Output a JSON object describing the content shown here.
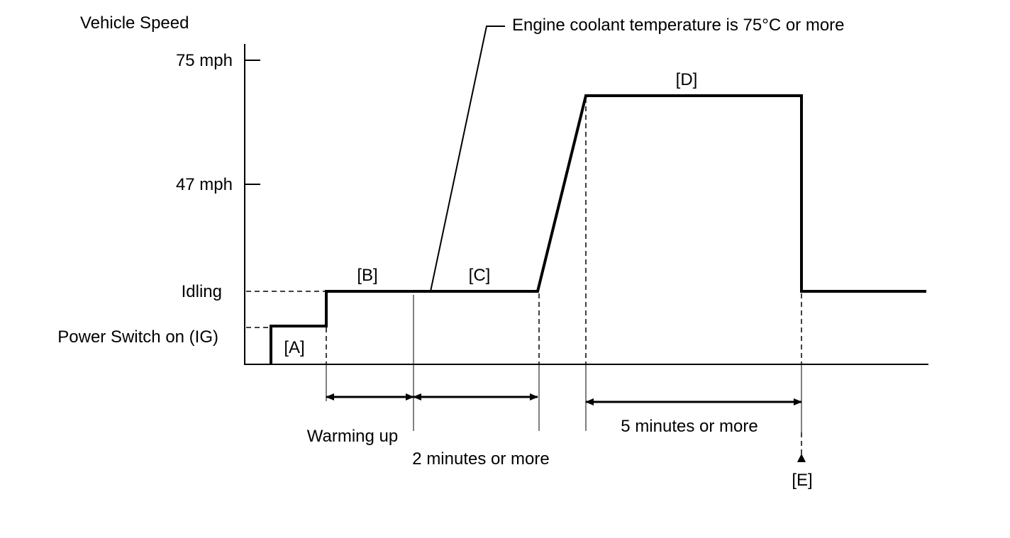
{
  "y_axis": {
    "title": "Vehicle Speed",
    "ticks": [
      "75 mph",
      "47 mph"
    ],
    "levels": [
      "Idling",
      "Power Switch on (IG)"
    ]
  },
  "stages": [
    "[A]",
    "[B]",
    "[C]",
    "[D]",
    "[E]"
  ],
  "annotations": {
    "coolant": "Engine coolant temperature is 75°C or more",
    "warming": "Warming up",
    "two_min": "2 minutes or more",
    "five_min": "5 minutes or more"
  }
}
